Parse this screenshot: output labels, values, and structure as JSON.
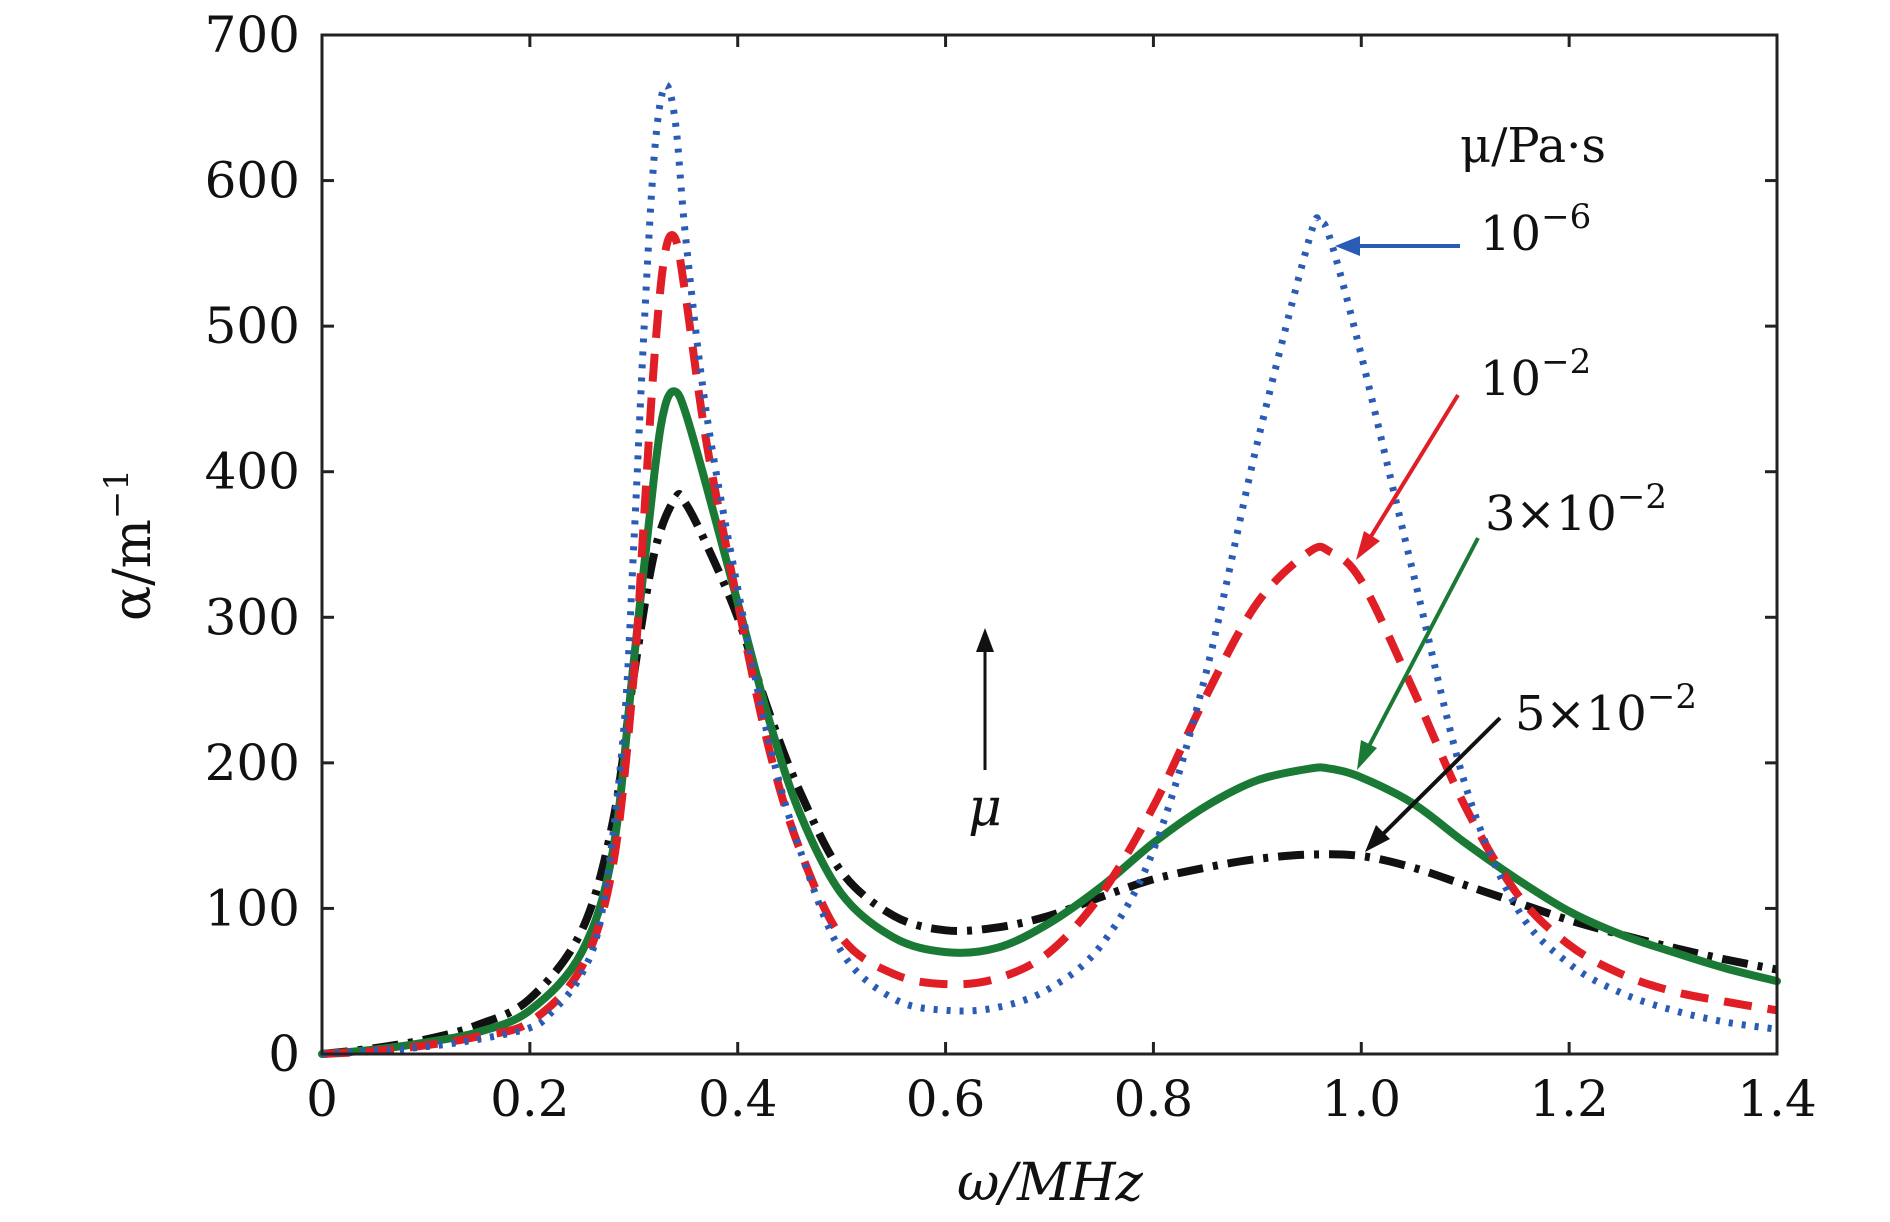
{
  "chart_data": {
    "type": "line",
    "title": "",
    "xlabel": "ω/MHz",
    "ylabel_main": "α/m",
    "ylabel_sup": "−1",
    "xlim": [
      0,
      1.4
    ],
    "ylim": [
      0,
      700
    ],
    "xticks": [
      0,
      0.2,
      0.4,
      0.6,
      0.8,
      1.0,
      1.2,
      1.4
    ],
    "xtick_labels": [
      "0",
      "0.2",
      "0.4",
      "0.6",
      "0.8",
      "1.0",
      "1.2",
      "1.4"
    ],
    "yticks": [
      0,
      100,
      200,
      300,
      400,
      500,
      600,
      700
    ],
    "ytick_labels": [
      "0",
      "100",
      "200",
      "300",
      "400",
      "500",
      "600",
      "700"
    ],
    "legend_title": "μ/Pa·s",
    "arrow_annotation": "μ",
    "series": [
      {
        "name": "10^-6",
        "label_base": "10",
        "label_exp": "−6",
        "color": "#2a5bb5",
        "style": "dotted",
        "points": [
          [
            0,
            0
          ],
          [
            0.05,
            2
          ],
          [
            0.1,
            5
          ],
          [
            0.15,
            10
          ],
          [
            0.2,
            18
          ],
          [
            0.22,
            28
          ],
          [
            0.25,
            55
          ],
          [
            0.27,
            100
          ],
          [
            0.29,
            220
          ],
          [
            0.3,
            350
          ],
          [
            0.31,
            500
          ],
          [
            0.32,
            620
          ],
          [
            0.33,
            665
          ],
          [
            0.34,
            640
          ],
          [
            0.35,
            560
          ],
          [
            0.37,
            440
          ],
          [
            0.4,
            320
          ],
          [
            0.43,
            215
          ],
          [
            0.46,
            140
          ],
          [
            0.5,
            70
          ],
          [
            0.55,
            38
          ],
          [
            0.6,
            30
          ],
          [
            0.65,
            32
          ],
          [
            0.7,
            45
          ],
          [
            0.75,
            75
          ],
          [
            0.8,
            140
          ],
          [
            0.85,
            260
          ],
          [
            0.9,
            420
          ],
          [
            0.95,
            560
          ],
          [
            0.96,
            570
          ],
          [
            0.97,
            560
          ],
          [
            1.0,
            480
          ],
          [
            1.05,
            330
          ],
          [
            1.1,
            185
          ],
          [
            1.15,
            100
          ],
          [
            1.2,
            62
          ],
          [
            1.25,
            42
          ],
          [
            1.3,
            30
          ],
          [
            1.35,
            22
          ],
          [
            1.4,
            17
          ]
        ]
      },
      {
        "name": "10^-2",
        "label_base": "10",
        "label_exp": "−2",
        "color": "#e01e26",
        "style": "dashed",
        "points": [
          [
            0,
            0
          ],
          [
            0.05,
            2
          ],
          [
            0.1,
            6
          ],
          [
            0.15,
            12
          ],
          [
            0.2,
            22
          ],
          [
            0.25,
            60
          ],
          [
            0.28,
            130
          ],
          [
            0.3,
            260
          ],
          [
            0.31,
            370
          ],
          [
            0.32,
            480
          ],
          [
            0.33,
            550
          ],
          [
            0.34,
            560
          ],
          [
            0.35,
            520
          ],
          [
            0.37,
            420
          ],
          [
            0.4,
            310
          ],
          [
            0.43,
            210
          ],
          [
            0.46,
            140
          ],
          [
            0.5,
            80
          ],
          [
            0.55,
            55
          ],
          [
            0.6,
            48
          ],
          [
            0.65,
            52
          ],
          [
            0.7,
            70
          ],
          [
            0.75,
            110
          ],
          [
            0.8,
            170
          ],
          [
            0.85,
            245
          ],
          [
            0.9,
            310
          ],
          [
            0.95,
            345
          ],
          [
            0.97,
            345
          ],
          [
            1.0,
            325
          ],
          [
            1.05,
            250
          ],
          [
            1.1,
            170
          ],
          [
            1.15,
            110
          ],
          [
            1.2,
            75
          ],
          [
            1.25,
            55
          ],
          [
            1.3,
            43
          ],
          [
            1.35,
            36
          ],
          [
            1.4,
            30
          ]
        ]
      },
      {
        "name": "3×10^-2",
        "label_base": "3×10",
        "label_exp": "−2",
        "color": "#1a7a35",
        "style": "solid",
        "points": [
          [
            0,
            0
          ],
          [
            0.05,
            3
          ],
          [
            0.1,
            8
          ],
          [
            0.15,
            15
          ],
          [
            0.2,
            30
          ],
          [
            0.25,
            70
          ],
          [
            0.28,
            140
          ],
          [
            0.3,
            270
          ],
          [
            0.32,
            400
          ],
          [
            0.33,
            445
          ],
          [
            0.34,
            455
          ],
          [
            0.35,
            440
          ],
          [
            0.37,
            390
          ],
          [
            0.4,
            310
          ],
          [
            0.43,
            230
          ],
          [
            0.46,
            165
          ],
          [
            0.5,
            110
          ],
          [
            0.55,
            80
          ],
          [
            0.6,
            70
          ],
          [
            0.65,
            73
          ],
          [
            0.7,
            90
          ],
          [
            0.75,
            115
          ],
          [
            0.8,
            145
          ],
          [
            0.85,
            170
          ],
          [
            0.9,
            188
          ],
          [
            0.95,
            196
          ],
          [
            0.97,
            196
          ],
          [
            1.0,
            190
          ],
          [
            1.05,
            172
          ],
          [
            1.1,
            145
          ],
          [
            1.15,
            120
          ],
          [
            1.2,
            98
          ],
          [
            1.25,
            82
          ],
          [
            1.3,
            70
          ],
          [
            1.35,
            59
          ],
          [
            1.4,
            50
          ]
        ]
      },
      {
        "name": "5×10^-2",
        "label_base": "5×10",
        "label_exp": "−2",
        "color": "#111111",
        "style": "dashdot",
        "points": [
          [
            0,
            0
          ],
          [
            0.05,
            4
          ],
          [
            0.1,
            10
          ],
          [
            0.15,
            20
          ],
          [
            0.2,
            38
          ],
          [
            0.25,
            85
          ],
          [
            0.28,
            160
          ],
          [
            0.3,
            260
          ],
          [
            0.32,
            345
          ],
          [
            0.34,
            382
          ],
          [
            0.35,
            378
          ],
          [
            0.37,
            350
          ],
          [
            0.4,
            300
          ],
          [
            0.43,
            235
          ],
          [
            0.46,
            180
          ],
          [
            0.5,
            125
          ],
          [
            0.55,
            95
          ],
          [
            0.6,
            85
          ],
          [
            0.65,
            87
          ],
          [
            0.7,
            95
          ],
          [
            0.75,
            108
          ],
          [
            0.8,
            120
          ],
          [
            0.85,
            128
          ],
          [
            0.9,
            134
          ],
          [
            0.95,
            137
          ],
          [
            1.0,
            136
          ],
          [
            1.05,
            128
          ],
          [
            1.1,
            116
          ],
          [
            1.15,
            104
          ],
          [
            1.2,
            92
          ],
          [
            1.25,
            82
          ],
          [
            1.3,
            73
          ],
          [
            1.35,
            65
          ],
          [
            1.4,
            58
          ]
        ]
      }
    ]
  }
}
